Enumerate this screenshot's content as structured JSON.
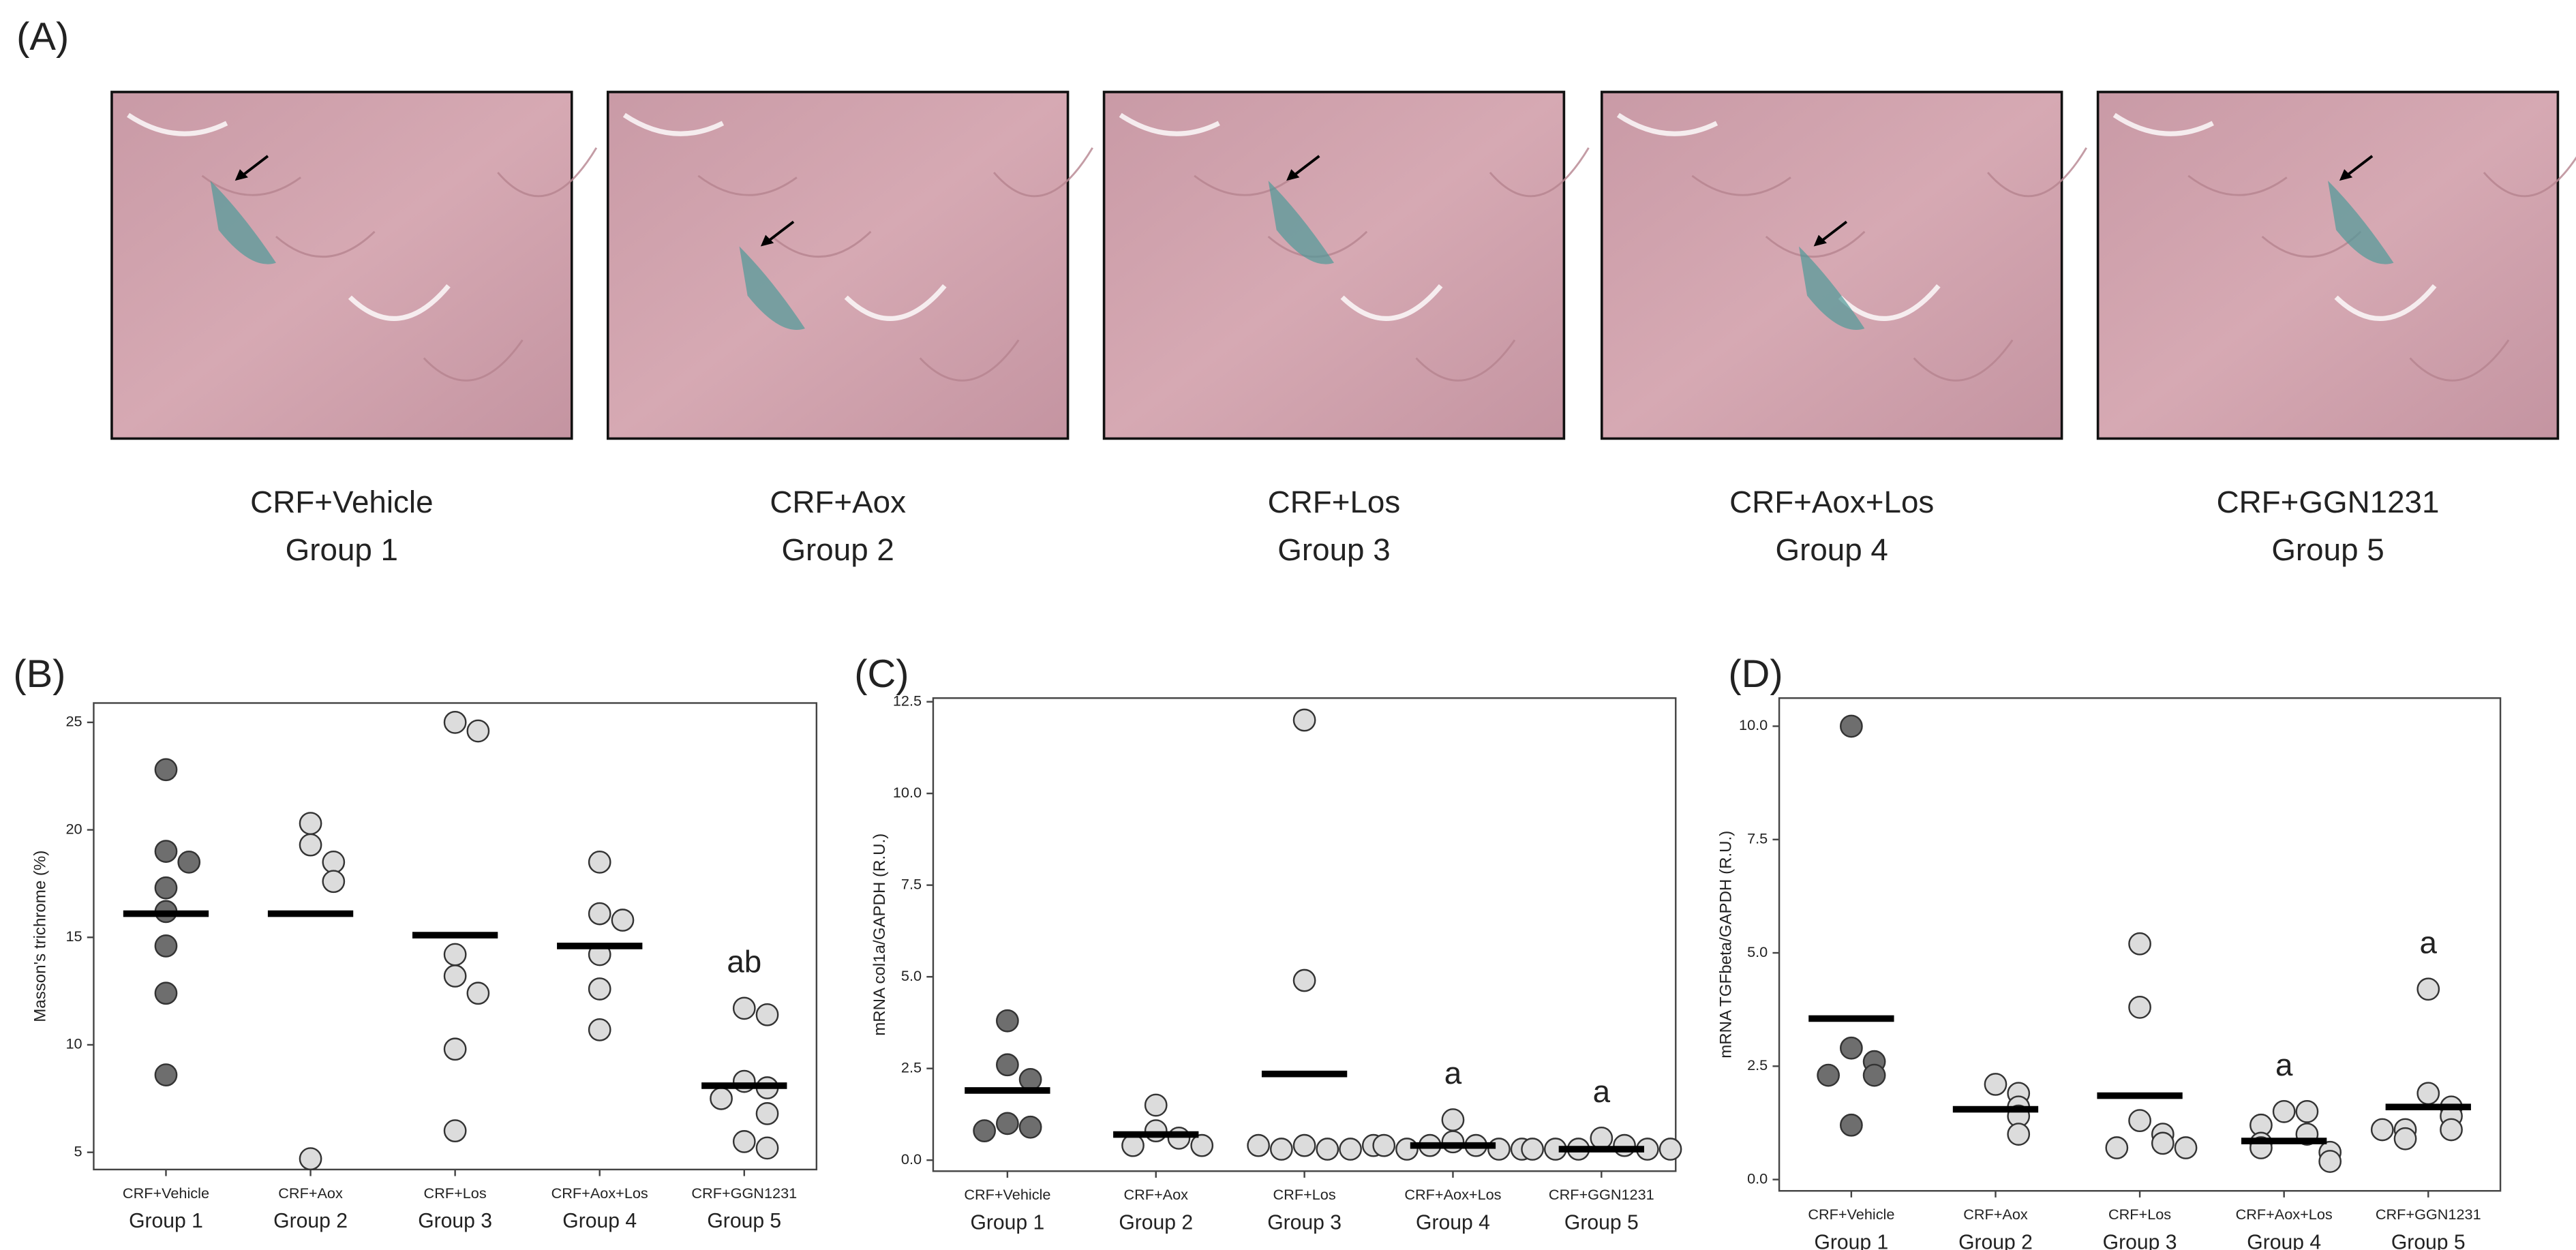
{
  "panel_labels": [
    "(A)",
    "(B)",
    "(C)",
    "(D)"
  ],
  "micrographs": [
    {
      "label": "CRF+Vehicle",
      "group": "Group 1"
    },
    {
      "label": "CRF+Aox",
      "group": "Group 2"
    },
    {
      "label": "CRF+Los",
      "group": "Group 3"
    },
    {
      "label": "CRF+Aox+Los",
      "group": "Group 4"
    },
    {
      "label": "CRF+GGN1231",
      "group": "Group 5"
    }
  ],
  "chart_data": [
    {
      "type": "dot",
      "y_label": "Masson's trichrome (%)",
      "categories": [
        "CRF+Vehicle",
        "CRF+Aox",
        "CRF+Los",
        "CRF+Aox+Los",
        "CRF+GGN1231"
      ],
      "groups": [
        "Group 1",
        "Group 2",
        "Group 3",
        "Group 4",
        "Group 5"
      ],
      "point_colors": [
        "#6e6e6e",
        "#dcdcdc",
        "#dcdcdc",
        "#dcdcdc",
        "#dcdcdc"
      ],
      "points": [
        [
          22.8,
          19.0,
          18.5,
          17.3,
          16.2,
          14.6,
          12.4,
          8.6
        ],
        [
          20.3,
          19.3,
          18.5,
          17.6,
          4.7
        ],
        [
          25.0,
          24.6,
          14.2,
          13.2,
          12.4,
          9.8,
          6.0
        ],
        [
          18.5,
          16.1,
          15.8,
          14.2,
          12.6,
          10.7
        ],
        [
          11.7,
          11.4,
          8.3,
          8.0,
          7.5,
          6.8,
          5.5,
          5.2
        ]
      ],
      "means": [
        16.1,
        16.1,
        15.1,
        14.6,
        8.1
      ],
      "annotations": [
        null,
        null,
        null,
        null,
        "ab"
      ],
      "ylim": [
        4.2,
        25.9
      ],
      "yticks": [
        5,
        10,
        15,
        20,
        25
      ]
    },
    {
      "type": "dot",
      "y_label": "mRNA col1a/GAPDH (R.U.)",
      "categories": [
        "CRF+Vehicle",
        "CRF+Aox",
        "CRF+Los",
        "CRF+Aox+Los",
        "CRF+GGN1231"
      ],
      "groups": [
        "Group 1",
        "Group 2",
        "Group 3",
        "Group 4",
        "Group 5"
      ],
      "point_colors": [
        "#6e6e6e",
        "#dcdcdc",
        "#dcdcdc",
        "#dcdcdc",
        "#dcdcdc"
      ],
      "points": [
        [
          3.8,
          2.6,
          2.2,
          1.0,
          0.9,
          0.8
        ],
        [
          1.5,
          0.8,
          0.6,
          0.4,
          0.4
        ],
        [
          12.0,
          4.9,
          0.4,
          0.3,
          0.3,
          0.3,
          0.4,
          0.4
        ],
        [
          1.1,
          0.5,
          0.4,
          0.4,
          0.3,
          0.3,
          0.3,
          0.4
        ],
        [
          0.6,
          0.4,
          0.3,
          0.3,
          0.3,
          0.3,
          0.3
        ]
      ],
      "means": [
        1.9,
        0.7,
        2.35,
        0.4,
        0.3
      ],
      "annotations": [
        null,
        null,
        null,
        "a",
        "a"
      ],
      "ylim": [
        -0.3,
        12.6
      ],
      "yticks": [
        {
          "value": 0,
          "label": "0.0"
        },
        2.5,
        {
          "value": 5,
          "label": "5.0"
        },
        7.5,
        {
          "value": 10,
          "label": "10.0"
        },
        12.5
      ]
    },
    {
      "type": "dot",
      "y_label": "mRNA TGFbeta/GAPDH (R.U.)",
      "categories": [
        "CRF+Vehicle",
        "CRF+Aox",
        "CRF+Los",
        "CRF+Aox+Los",
        "CRF+GGN1231"
      ],
      "groups": [
        "Group 1",
        "Group 2",
        "Group 3",
        "Group 4",
        "Group 5"
      ],
      "point_colors": [
        "#6e6e6e",
        "#dcdcdc",
        "#dcdcdc",
        "#dcdcdc",
        "#dcdcdc"
      ],
      "points": [
        [
          10.0,
          2.9,
          2.6,
          2.3,
          2.3,
          1.2
        ],
        [
          2.1,
          1.9,
          1.6,
          1.4,
          1.0
        ],
        [
          5.2,
          3.8,
          1.3,
          1.0,
          0.8,
          0.7,
          0.7
        ],
        [
          1.5,
          1.5,
          1.2,
          1.0,
          0.8,
          0.7,
          0.6,
          0.4
        ],
        [
          4.2,
          1.9,
          1.6,
          1.4,
          1.1,
          1.1,
          0.9,
          1.1
        ]
      ],
      "means": [
        3.55,
        1.55,
        1.85,
        0.85,
        1.6
      ],
      "annotations": [
        null,
        null,
        null,
        "a",
        "a"
      ],
      "ylim": [
        -0.25,
        10.62
      ],
      "yticks": [
        {
          "value": 0,
          "label": "0.0"
        },
        2.5,
        {
          "value": 5,
          "label": "5.0"
        },
        7.5,
        {
          "value": 10,
          "label": "10.0"
        }
      ]
    }
  ]
}
